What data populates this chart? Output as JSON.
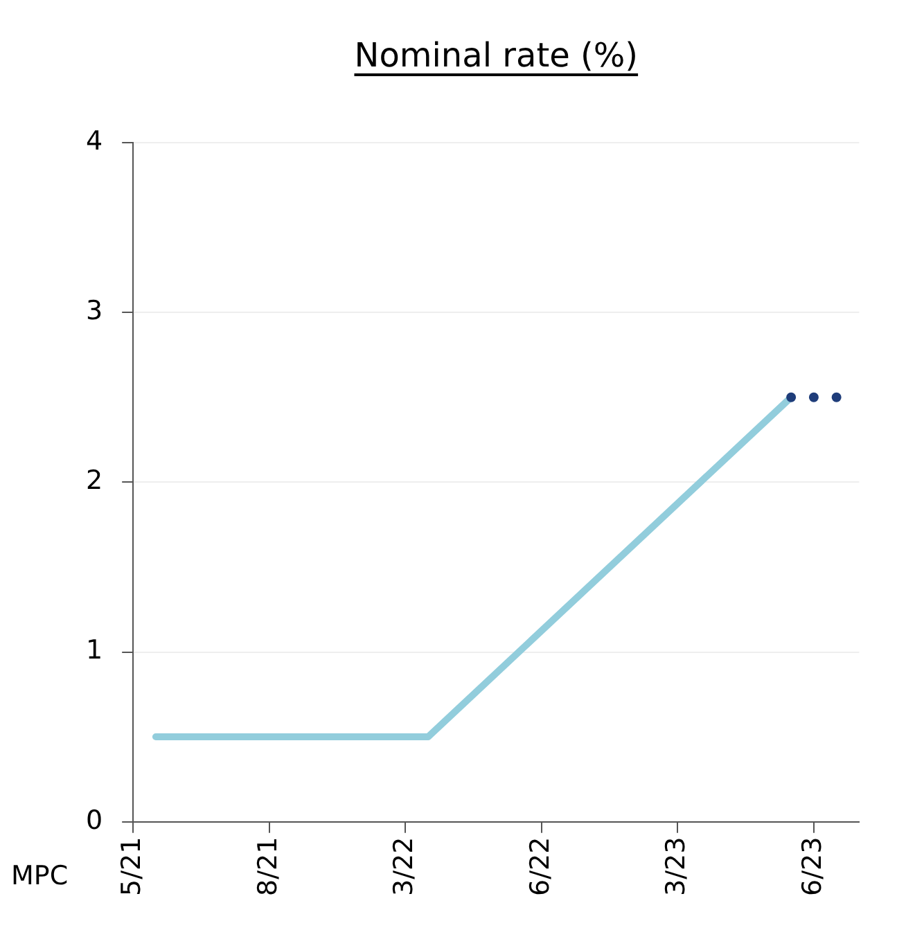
{
  "chart_data": {
    "type": "line",
    "title": "Nominal rate (%)",
    "xlabel": "MPC",
    "categories": [
      "5/21",
      null,
      null,
      null,
      null,
      null,
      "8/21",
      null,
      null,
      null,
      null,
      null,
      "3/22",
      null,
      null,
      null,
      null,
      null,
      "6/22",
      null,
      null,
      null,
      null,
      null,
      "3/23",
      null,
      null,
      null,
      null,
      null,
      "6/23",
      null,
      null
    ],
    "ylim": [
      0,
      4
    ],
    "yticks": [
      0,
      1,
      2,
      3,
      4
    ],
    "grid": "y",
    "series": [
      {
        "type": "line",
        "color": "#92cddc",
        "values": [
          null,
          0.5,
          null,
          null,
          null,
          null,
          null,
          null,
          null,
          null,
          null,
          null,
          null,
          0.5,
          null,
          null,
          null,
          null,
          null,
          null,
          null,
          null,
          null,
          null,
          null,
          null,
          null,
          null,
          null,
          2.5,
          null,
          null,
          null
        ]
      },
      {
        "type": "scatter",
        "marker": "circle",
        "color": "#1f3d7a",
        "values": [
          null,
          null,
          null,
          null,
          null,
          null,
          null,
          null,
          null,
          null,
          null,
          null,
          null,
          null,
          null,
          null,
          null,
          null,
          null,
          null,
          null,
          null,
          null,
          null,
          null,
          null,
          null,
          null,
          null,
          2.5,
          2.5,
          2.5,
          null
        ]
      }
    ]
  }
}
